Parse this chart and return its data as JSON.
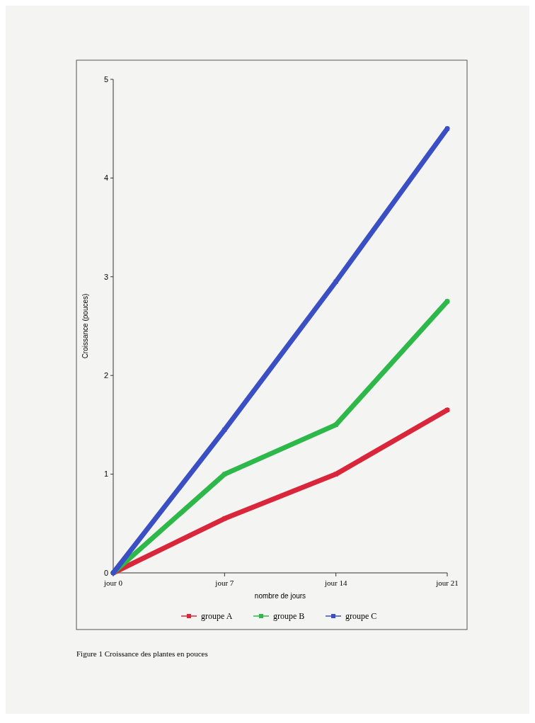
{
  "chart_data": {
    "type": "line",
    "xlabel": "nombre de jours",
    "ylabel": "Croissance (pouces)",
    "categories": [
      "jour 0",
      "jour 7",
      "jour 14",
      "jour 21"
    ],
    "series": [
      {
        "name": "groupe A",
        "color": "#d9263a",
        "values": [
          0,
          0.55,
          1.0,
          1.65
        ]
      },
      {
        "name": "groupe B",
        "color": "#2fb84a",
        "values": [
          0,
          1.0,
          1.5,
          2.75
        ]
      },
      {
        "name": "groupe C",
        "color": "#3a4fc4",
        "values": [
          0,
          1.45,
          2.95,
          4.5
        ]
      }
    ],
    "ylim": [
      0,
      5
    ],
    "yticks": [
      0,
      1,
      2,
      3,
      4,
      5
    ],
    "grid": false,
    "legend": "bottom",
    "marker": "square",
    "line_style": "solid",
    "annotations": [
      "Figure 1 Croissance des plantes en pouces"
    ]
  }
}
